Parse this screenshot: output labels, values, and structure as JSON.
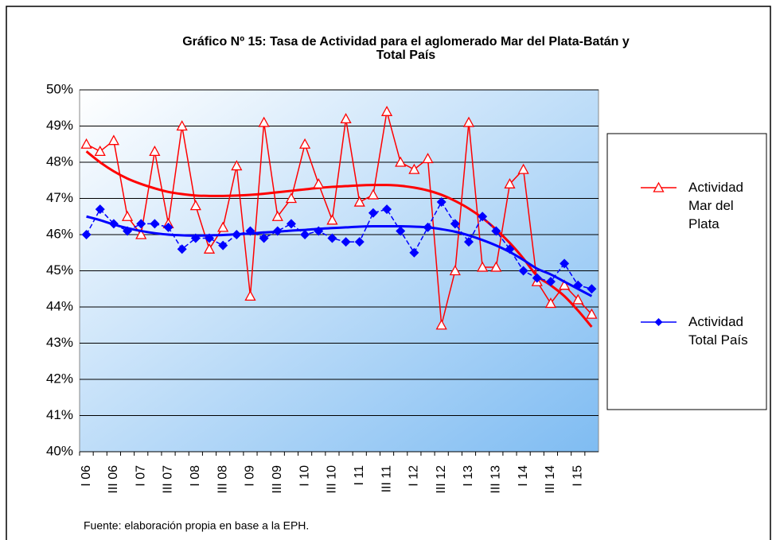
{
  "chart_data": {
    "type": "line",
    "title": "Gráfico Nº 15: Tasa de Actividad para el aglomerado Mar del Plata-Batán y Total País",
    "footnote": "Fuente: elaboración propia en base a la EPH.",
    "categories": [
      "I 06",
      null,
      "III 06",
      null,
      "I 07",
      null,
      "III 07",
      null,
      "I 08",
      null,
      "III 08",
      null,
      "I 09",
      null,
      "III 09",
      null,
      "I 10",
      null,
      "III 10",
      null,
      "I 11",
      null,
      "III 11",
      null,
      "I 12",
      null,
      "III 12",
      null,
      "I 13",
      null,
      "III 13",
      null,
      "I 14",
      null,
      "III 14",
      null,
      "I 15",
      null
    ],
    "series": [
      {
        "name": "Actividad Mar del Plata",
        "color": "#ff0000",
        "marker": "triangle",
        "values": [
          48.5,
          48.3,
          48.6,
          46.5,
          46.0,
          48.3,
          46.3,
          49.0,
          46.8,
          45.6,
          46.2,
          47.9,
          44.3,
          49.1,
          46.5,
          47.0,
          48.5,
          47.4,
          46.4,
          49.2,
          46.9,
          47.1,
          49.4,
          48.0,
          47.8,
          48.1,
          43.5,
          45.0,
          49.1,
          45.1,
          45.1,
          47.4,
          47.8,
          44.7,
          44.1,
          44.6,
          44.2,
          43.8
        ],
        "trend": [
          48.3,
          48.0,
          47.75,
          47.55,
          47.4,
          47.28,
          47.18,
          47.12,
          47.08,
          47.07,
          47.07,
          47.08,
          47.1,
          47.13,
          47.17,
          47.21,
          47.25,
          47.29,
          47.32,
          47.34,
          47.36,
          47.37,
          47.37,
          47.35,
          47.3,
          47.22,
          47.1,
          46.93,
          46.72,
          46.46,
          46.14,
          45.77,
          45.34,
          44.86,
          44.6,
          44.3,
          43.9,
          43.45
        ]
      },
      {
        "name": "Actividad Total País",
        "color": "#0000ff",
        "marker": "diamond",
        "values": [
          46.0,
          46.7,
          46.3,
          46.1,
          46.3,
          46.3,
          46.2,
          45.6,
          45.9,
          45.9,
          45.7,
          46.0,
          46.1,
          45.9,
          46.1,
          46.3,
          46.0,
          46.1,
          45.9,
          45.8,
          45.8,
          46.6,
          46.7,
          46.1,
          45.5,
          46.2,
          46.9,
          46.3,
          45.8,
          46.5,
          46.1,
          45.6,
          45.0,
          44.8,
          44.7,
          45.2,
          44.6,
          44.5
        ],
        "trend": [
          46.5,
          46.4,
          46.28,
          46.18,
          46.1,
          46.04,
          46.0,
          45.98,
          45.97,
          45.98,
          45.99,
          46.01,
          46.03,
          46.06,
          46.08,
          46.11,
          46.13,
          46.16,
          46.18,
          46.2,
          46.22,
          46.23,
          46.23,
          46.23,
          46.22,
          46.2,
          46.15,
          46.08,
          45.98,
          45.85,
          45.7,
          45.52,
          45.3,
          45.06,
          44.9,
          44.7,
          44.5,
          44.3
        ]
      }
    ],
    "ylim": [
      40,
      50
    ],
    "yticks": [
      {
        "value": 40,
        "label": "40%"
      },
      {
        "value": 41,
        "label": "41%"
      },
      {
        "value": 42,
        "label": "42%"
      },
      {
        "value": 43,
        "label": "43%"
      },
      {
        "value": 44,
        "label": "44%"
      },
      {
        "value": 45,
        "label": "45%"
      },
      {
        "value": 46,
        "label": "46%"
      },
      {
        "value": 47,
        "label": "47%"
      },
      {
        "value": 48,
        "label": "48%"
      },
      {
        "value": 49,
        "label": "49%"
      },
      {
        "value": 50,
        "label": "50%"
      }
    ],
    "grid": true
  }
}
